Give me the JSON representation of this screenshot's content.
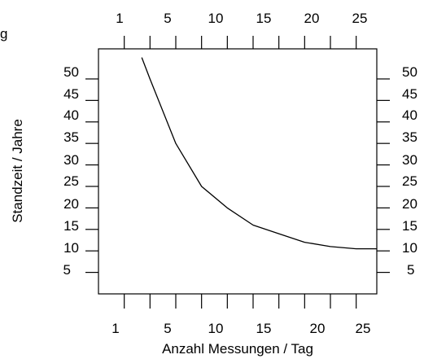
{
  "chart_data": {
    "type": "line",
    "title": "",
    "xlabel": "Anzahl Messungen / Tag",
    "ylabel": "Standzeit / Jahre",
    "xlim": [
      0,
      27
    ],
    "ylim": [
      0,
      57
    ],
    "x_ticks": [
      2.5,
      5,
      7.5,
      10,
      12.5,
      15,
      17.5,
      20,
      22.5,
      25
    ],
    "x_tick_labels": [
      "1",
      "5",
      "10",
      "15",
      "20",
      "25"
    ],
    "y_tick_labels": [
      "50",
      "45",
      "40",
      "35",
      "30",
      "25",
      "20",
      "15",
      "10",
      "5"
    ],
    "grid": false,
    "series": [
      {
        "x": [
          4.2,
          5,
          7.5,
          10,
          12.5,
          15,
          17.5,
          20,
          22.5,
          25,
          27
        ],
        "values": [
          55,
          50,
          35,
          25,
          20,
          16,
          14,
          12,
          11,
          10.5,
          10.5
        ]
      }
    ]
  },
  "edge_labels": {
    "top_left_fragment": "g"
  }
}
